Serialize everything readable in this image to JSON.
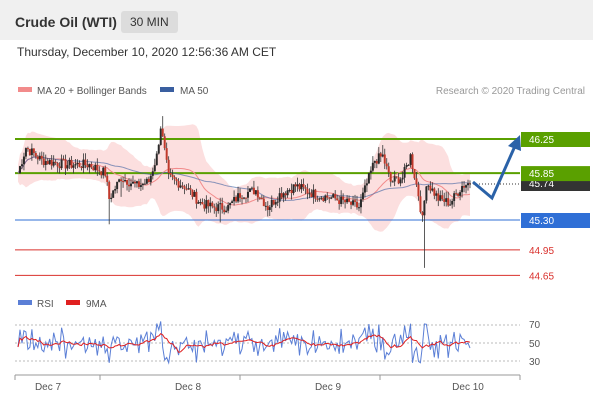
{
  "header": {
    "title": "Crude Oil (WTI)",
    "timeframe": "30 MIN"
  },
  "timestamp": "Thursday, December 10, 2020 12:56:36 AM CET",
  "credit": "Research © 2020 Trading Central",
  "colors": {
    "resistance": "#5aa000",
    "support": "#2f6fd6",
    "weak_level": "#d9302c",
    "price_box": "#333333",
    "arrow": "#2b62a8",
    "bollinger_fill": "#fbd9d9",
    "ma20": "#f28b8b",
    "ma50": "#3a5fa0",
    "rsi": "#5b7fd6",
    "rsi_ma": "#e02020"
  },
  "chart_data": [
    {
      "type": "candlestick",
      "legend": [
        {
          "name": "MA 20 + Bollinger Bands",
          "color": "#f28b8b"
        },
        {
          "name": "MA 50",
          "color": "#3a5fa0"
        }
      ],
      "x_ticks": [
        "Dec 7",
        "Dec 8",
        "Dec 9",
        "Dec 10"
      ],
      "current_price": 45.74,
      "levels": [
        {
          "value": 46.25,
          "label": "46.25",
          "kind": "resistance"
        },
        {
          "value": 45.85,
          "label": "45.85",
          "kind": "resistance"
        },
        {
          "value": 45.3,
          "label": "45.30",
          "kind": "support"
        },
        {
          "value": 44.95,
          "label": "44.95",
          "kind": "weak"
        },
        {
          "value": 44.65,
          "label": "44.65",
          "kind": "weak"
        }
      ],
      "forecast": {
        "direction": "down then up",
        "from": 45.74,
        "low": 45.55,
        "target": 46.25
      }
    },
    {
      "type": "line",
      "legend": [
        {
          "name": "RSI",
          "color": "#5b7fd6"
        },
        {
          "name": "9MA",
          "color": "#e02020"
        }
      ],
      "y_ticks": [
        "70",
        "50",
        "30"
      ],
      "ylim": [
        20,
        80
      ]
    }
  ]
}
